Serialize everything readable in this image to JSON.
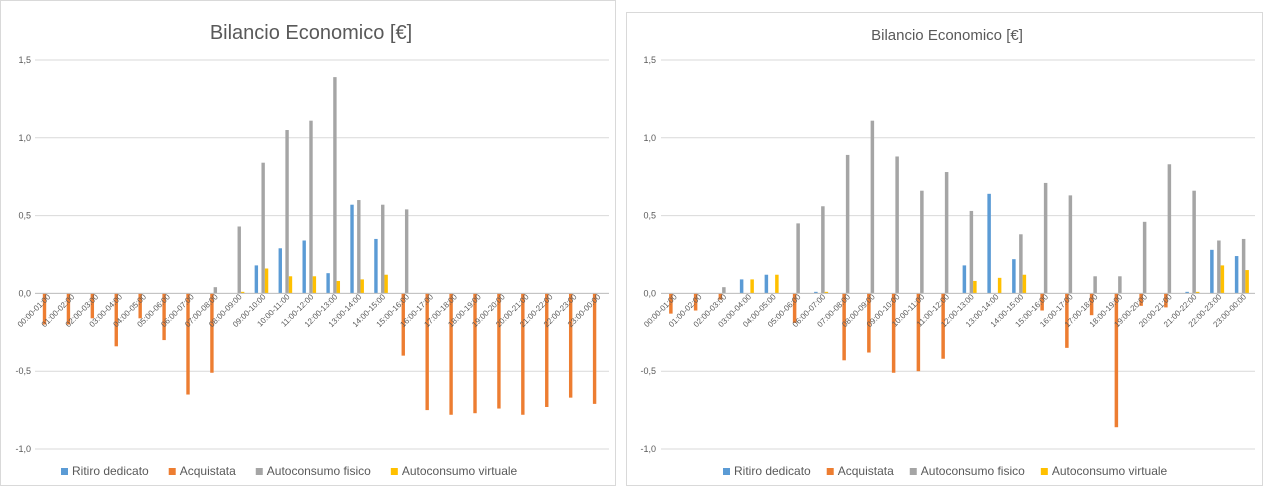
{
  "colors": {
    "Ritiro dedicato": "#5b9bd5",
    "Acquistata": "#ed7d31",
    "Autoconsumo fisico": "#a5a5a5",
    "Autoconsumo virtuale": "#ffc000",
    "grid": "#d9d9d9"
  },
  "chart_data": [
    {
      "type": "bar",
      "title": "Bilancio Economico [€]",
      "xlabel": "",
      "ylabel": "",
      "ylim": [
        -1.0,
        1.5
      ],
      "yticks": [
        "-1,0",
        "-0,5",
        "0,0",
        "0,5",
        "1,0",
        "1,5"
      ],
      "grid": true,
      "legend": "bottom",
      "categories": [
        "00:00-01:00",
        "01:00-02:00",
        "02:00-03:00",
        "03:00-04:00",
        "04:00-05:00",
        "05:00-06:00",
        "06:00-07:00",
        "07:00-08:00",
        "08:00-09:00",
        "09:00-10:00",
        "10:00-11:00",
        "11:00-12:00",
        "12:00-13:00",
        "13:00-14:00",
        "14:00-15:00",
        "15:00-16:00",
        "16:00-17:00",
        "17:00-18:00",
        "18:00-19:00",
        "19:00-20:00",
        "20:00-21:00",
        "21:00-22:00",
        "22:00-23:00",
        "23:00-00:00"
      ],
      "series": [
        {
          "name": "Ritiro dedicato",
          "values": [
            0,
            0,
            0,
            0,
            0,
            0,
            0,
            0,
            0,
            0.18,
            0.29,
            0.34,
            0.13,
            0.57,
            0.35,
            0,
            0,
            0,
            0,
            0,
            0,
            0,
            0,
            0
          ]
        },
        {
          "name": "Acquistata",
          "values": [
            -0.2,
            -0.2,
            -0.16,
            -0.34,
            -0.16,
            -0.3,
            -0.65,
            -0.51,
            0,
            0,
            0,
            0,
            0,
            0,
            0,
            -0.4,
            -0.75,
            -0.78,
            -0.77,
            -0.74,
            -0.78,
            -0.73,
            -0.67,
            -0.71
          ]
        },
        {
          "name": "Autoconsumo fisico",
          "values": [
            0,
            0,
            0,
            0,
            0,
            0,
            0,
            0.04,
            0.43,
            0.84,
            1.05,
            1.11,
            1.39,
            0.6,
            0.57,
            0.54,
            0,
            0,
            0,
            0,
            0,
            0,
            0,
            0
          ]
        },
        {
          "name": "Autoconsumo virtuale",
          "values": [
            0,
            0,
            0,
            0,
            0,
            0,
            0,
            0,
            0.01,
            0.16,
            0.11,
            0.11,
            0.08,
            0.09,
            0.12,
            0,
            0,
            0,
            0,
            0,
            0,
            0,
            0,
            0
          ]
        }
      ]
    },
    {
      "type": "bar",
      "title": "Bilancio Economico [€]",
      "xlabel": "",
      "ylabel": "",
      "ylim": [
        -1.0,
        1.5
      ],
      "yticks": [
        "-1,0",
        "-0,5",
        "0,0",
        "0,5",
        "1,0",
        "1,5"
      ],
      "grid": true,
      "legend": "bottom",
      "categories": [
        "00:00-01:00",
        "01:00-02:00",
        "02:00-03:00",
        "03:00-04:00",
        "04:00-05:00",
        "05:00-06:00",
        "06:00-07:00",
        "07:00-08:00",
        "08:00-09:00",
        "09:00-10:00",
        "10:00-11:00",
        "11:00-12:00",
        "12:00-13:00",
        "13:00-14:00",
        "14:00-15:00",
        "15:00-16:00",
        "16:00-17:00",
        "17:00-18:00",
        "18:00-19:00",
        "19:00-20:00",
        "20:00-21:00",
        "21:00-22:00",
        "22:00-23:00",
        "23:00-00:00"
      ],
      "series": [
        {
          "name": "Ritiro dedicato",
          "values": [
            0,
            0,
            0,
            0.09,
            0.12,
            0,
            0.01,
            0,
            0,
            0,
            0,
            0,
            0.18,
            0.64,
            0.22,
            0,
            0,
            0,
            0,
            0,
            0,
            0.01,
            0.28,
            0.24
          ]
        },
        {
          "name": "Acquistata",
          "values": [
            -0.13,
            -0.11,
            -0.04,
            0,
            0,
            -0.19,
            0,
            -0.43,
            -0.38,
            -0.51,
            -0.5,
            -0.42,
            0,
            0,
            0,
            -0.11,
            -0.35,
            -0.14,
            -0.86,
            -0.08,
            -0.09,
            0,
            0,
            0
          ]
        },
        {
          "name": "Autoconsumo fisico",
          "values": [
            0,
            0,
            0.04,
            0,
            0,
            0.45,
            0.56,
            0.89,
            1.11,
            0.88,
            0.66,
            0.78,
            0.53,
            0,
            0.38,
            0.71,
            0.63,
            0.11,
            0.11,
            0.46,
            0.83,
            0.66,
            0.34,
            0.35
          ]
        },
        {
          "name": "Autoconsumo virtuale",
          "values": [
            0,
            0,
            0,
            0.09,
            0.12,
            0,
            0.01,
            0,
            0,
            0,
            0,
            0,
            0.08,
            0.1,
            0.12,
            0,
            0,
            0,
            0,
            0,
            0,
            0.01,
            0.18,
            0.15
          ]
        }
      ]
    }
  ]
}
